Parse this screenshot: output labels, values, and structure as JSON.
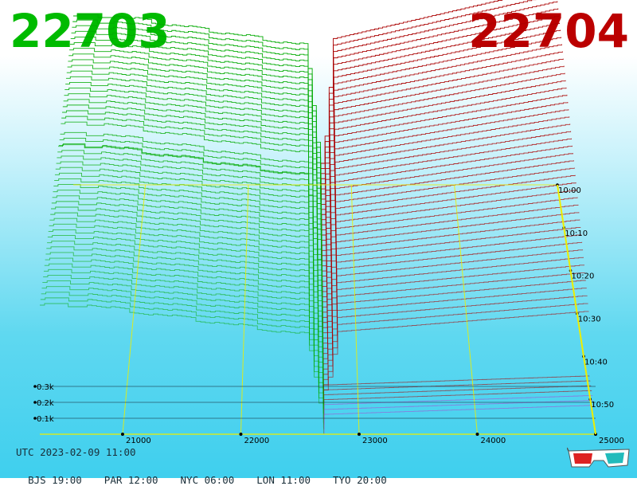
{
  "header": {
    "bid_price": "22703",
    "ask_price": "22704",
    "colors": {
      "bid": "#00bb00",
      "ask": "#bb0000"
    }
  },
  "chart_data": {
    "type": "area",
    "description_free": true,
    "x_axis": {
      "range": [
        20300,
        25000
      ],
      "ticks": [
        21000,
        22000,
        23000,
        24000,
        25000
      ],
      "tick_labels": [
        "21000",
        "22000",
        "23000",
        "24000",
        "25000"
      ]
    },
    "y_axis": {
      "range": [
        0,
        0.35
      ],
      "ticks": [
        0.1,
        0.2,
        0.3
      ],
      "tick_labels": [
        "0.1k",
        "0.2k",
        "0.3k"
      ]
    },
    "time_axis": {
      "ticks": [
        "10:00",
        "10:10",
        "10:20",
        "10:30",
        "10:40",
        "10:50"
      ]
    },
    "mid_price": 22703.5,
    "bid_side": {
      "color": "#00aa00",
      "x_start": 20300,
      "x_end": 22703
    },
    "ask_side": {
      "color": "#aa0000",
      "x_start": 22704,
      "x_end": 25000
    },
    "grid_color": "#eeee00"
  },
  "footer": {
    "utc_label": "UTC 2023-02-09 11:00",
    "cities": [
      "BJS 19:00",
      "PAR 12:00",
      "NYC 06:00",
      "LON 11:00",
      "TYO 20:00"
    ]
  },
  "icons": {
    "glasses": "3d-glasses-icon"
  }
}
